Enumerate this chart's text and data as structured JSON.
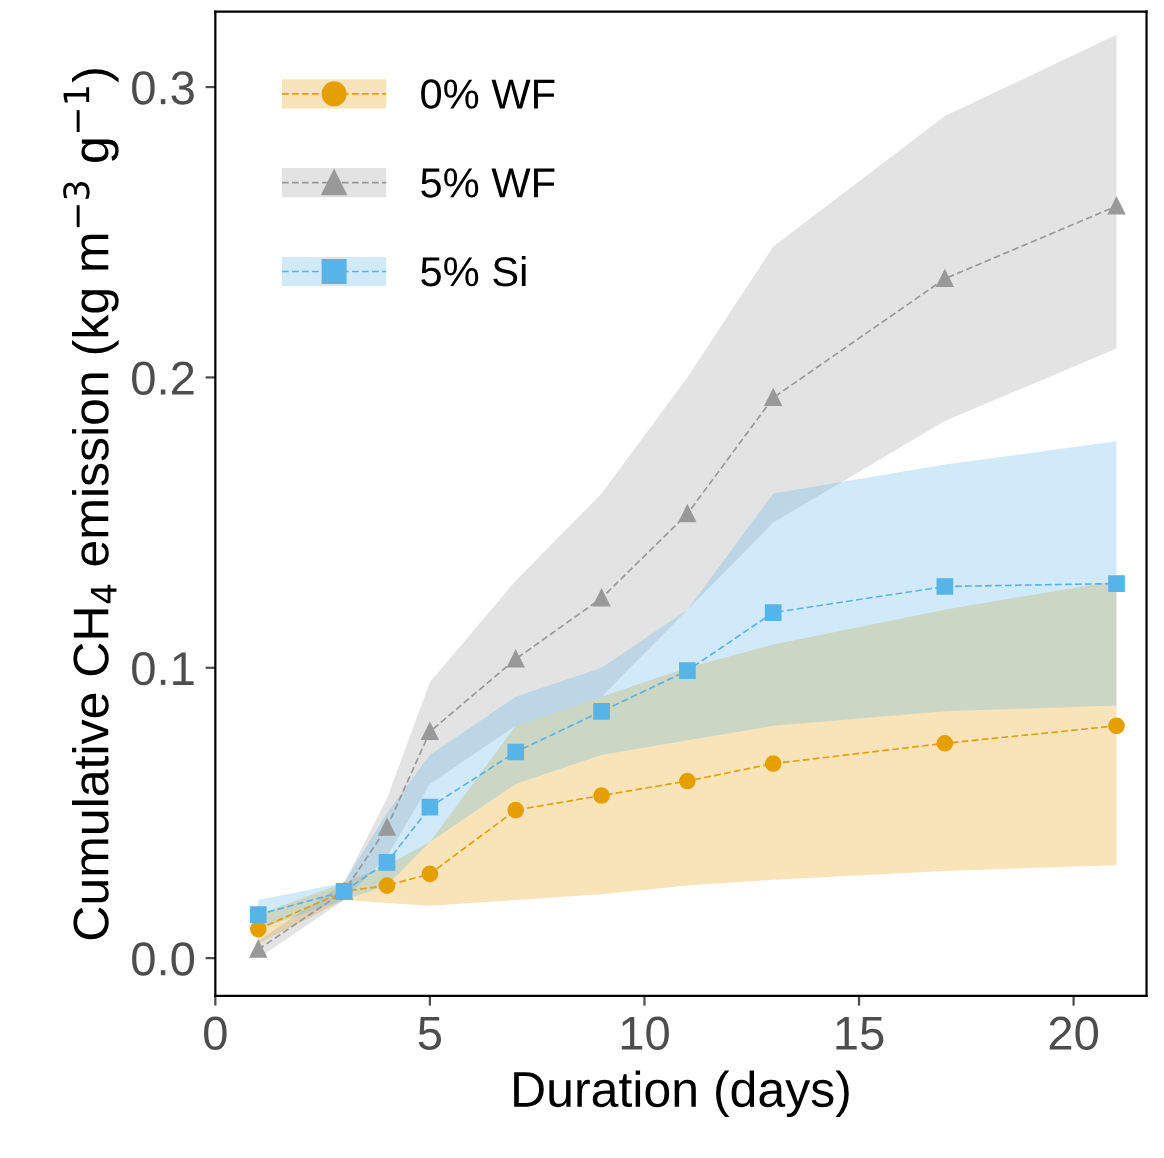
{
  "chart_data": {
    "type": "line",
    "xlabel": "Duration (days)",
    "ylabel": "Cumulative CH$_{4}$ emission (kg m$^{−3}$ g$^{−1}$)",
    "xlim": [
      0,
      21.7
    ],
    "ylim": [
      -0.013,
      0.326
    ],
    "xticks": [
      0,
      5,
      10,
      15,
      20
    ],
    "yticks": [
      {
        "value": 0,
        "label": "0.0"
      },
      0.1,
      0.2,
      0.3
    ],
    "grid": false,
    "legend": "top left",
    "line_style": "dashed",
    "series": [
      {
        "name": "0% WF",
        "color": "#e69f00",
        "marker": "circle",
        "x": [
          1,
          3,
          4,
          5,
          7,
          9,
          11,
          13,
          17,
          21
        ],
        "values": [
          0.01,
          0.023,
          0.025,
          0.029,
          0.051,
          0.056,
          0.061,
          0.067,
          0.074,
          0.08
        ],
        "lower": [
          0.005,
          0.02,
          0.019,
          0.018,
          0.02,
          0.022,
          0.025,
          0.027,
          0.03,
          0.032
        ],
        "upper": [
          0.015,
          0.026,
          0.032,
          0.04,
          0.08,
          0.09,
          0.1,
          0.108,
          0.12,
          0.13
        ]
      },
      {
        "name": "5% WF",
        "color": "#999999",
        "marker": "triangle",
        "x": [
          1,
          3,
          4,
          5,
          7,
          9,
          11,
          13,
          17,
          21
        ],
        "values": [
          0.003,
          0.023,
          0.045,
          0.078,
          0.103,
          0.124,
          0.153,
          0.193,
          0.234,
          0.259
        ],
        "lower": [
          0.0,
          0.02,
          0.035,
          0.06,
          0.08,
          0.09,
          0.12,
          0.15,
          0.185,
          0.21
        ],
        "upper": [
          0.006,
          0.026,
          0.055,
          0.095,
          0.13,
          0.16,
          0.2,
          0.245,
          0.29,
          0.318
        ]
      },
      {
        "name": "5% Si",
        "color": "#56b4e9",
        "marker": "square",
        "x": [
          1,
          3,
          4,
          5,
          7,
          9,
          11,
          13,
          17,
          21
        ],
        "values": [
          0.015,
          0.023,
          0.033,
          0.052,
          0.071,
          0.085,
          0.099,
          0.119,
          0.128,
          0.129
        ],
        "lower": [
          0.01,
          0.02,
          0.025,
          0.04,
          0.06,
          0.07,
          0.075,
          0.08,
          0.085,
          0.087
        ],
        "upper": [
          0.02,
          0.026,
          0.05,
          0.07,
          0.09,
          0.1,
          0.12,
          0.16,
          0.17,
          0.178
        ]
      }
    ]
  }
}
